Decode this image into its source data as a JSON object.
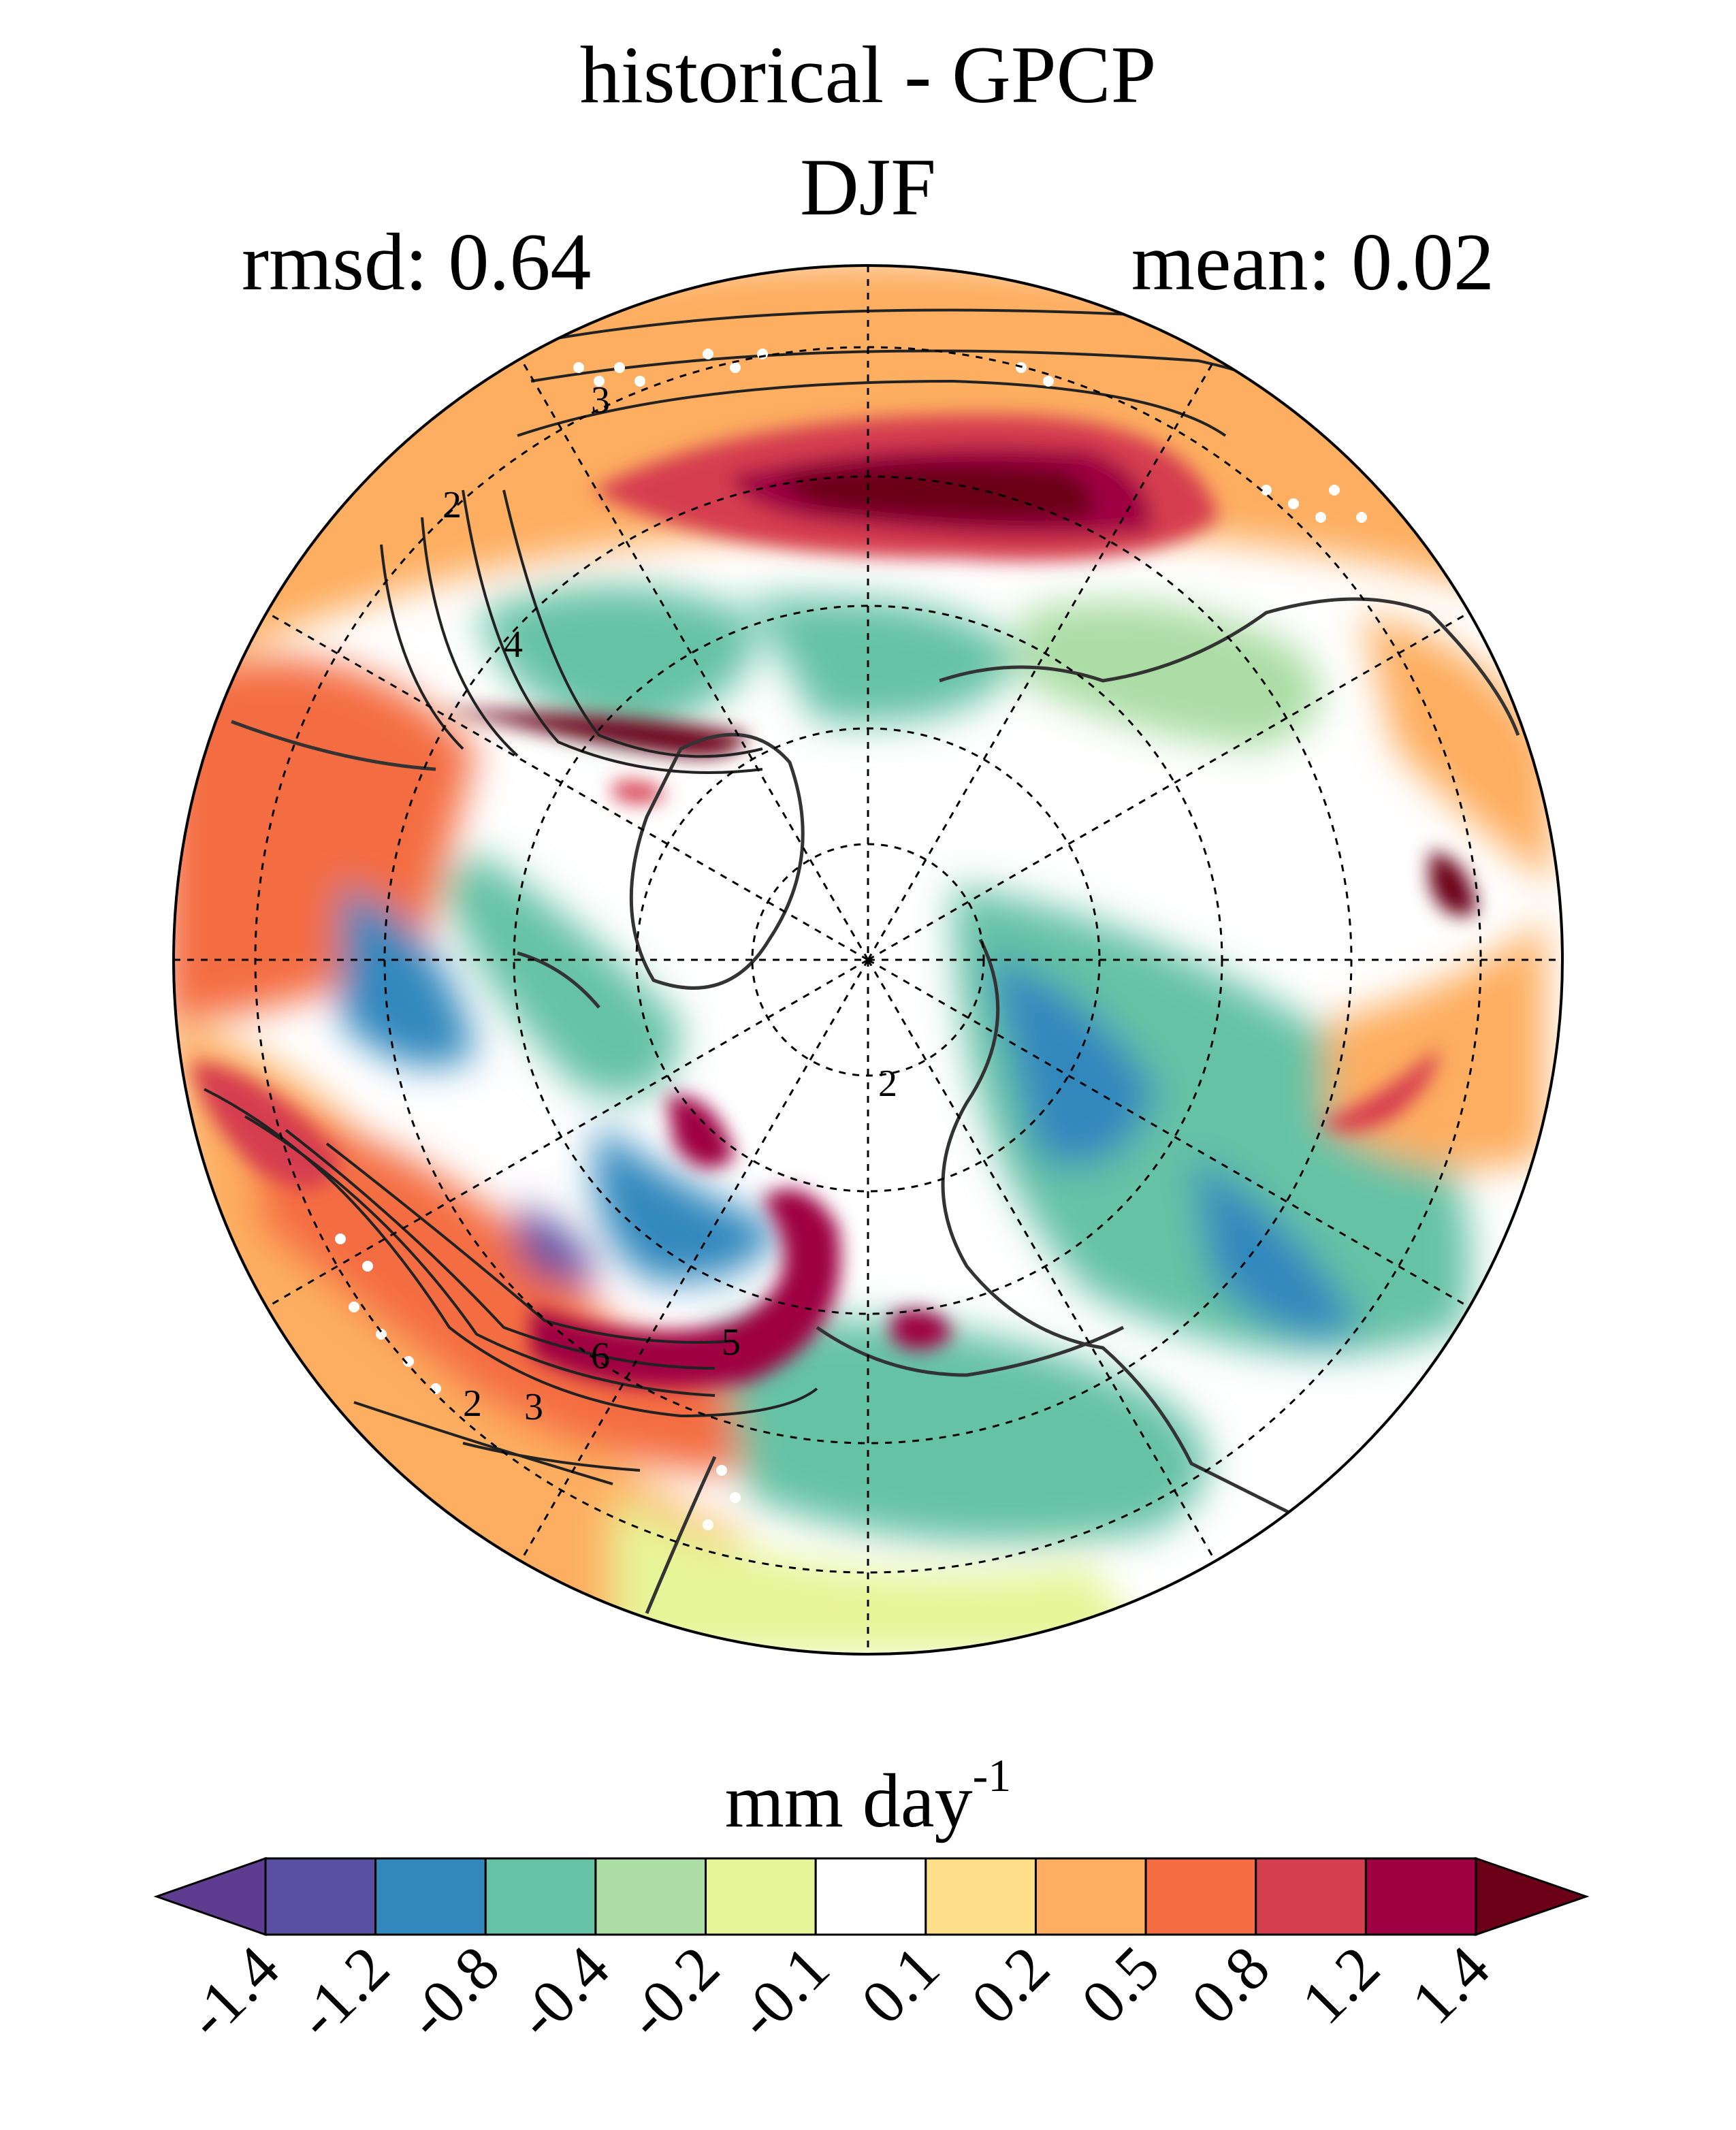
{
  "figure": {
    "title": "historical - GPCP",
    "season": "DJF",
    "rmsd_label": "rmsd: 0.64",
    "mean_label": "mean: 0.02"
  },
  "map": {
    "projection": "north-polar-stereographic",
    "field": "precipitation difference (historical minus GPCP)",
    "stippling": "white dots",
    "contour_labels": [
      "3",
      "2",
      "4",
      "2",
      "6",
      "5",
      "3",
      "2"
    ]
  },
  "colorbar": {
    "units_base": "mm day",
    "units_exp": "-1",
    "ticks": [
      "-1.4",
      "-1.2",
      "-0.8",
      "-0.4",
      "-0.2",
      "-0.1",
      "0.1",
      "0.2",
      "0.5",
      "0.8",
      "1.2",
      "1.4"
    ],
    "colors": [
      "#5e3c8f",
      "#5a4fa2",
      "#3288bd",
      "#66c2a5",
      "#abdda4",
      "#e6f598",
      "#ffffff",
      "#fee08b",
      "#fdae61",
      "#f46d43",
      "#d53e4f",
      "#9e0142",
      "#6b0018"
    ]
  }
}
